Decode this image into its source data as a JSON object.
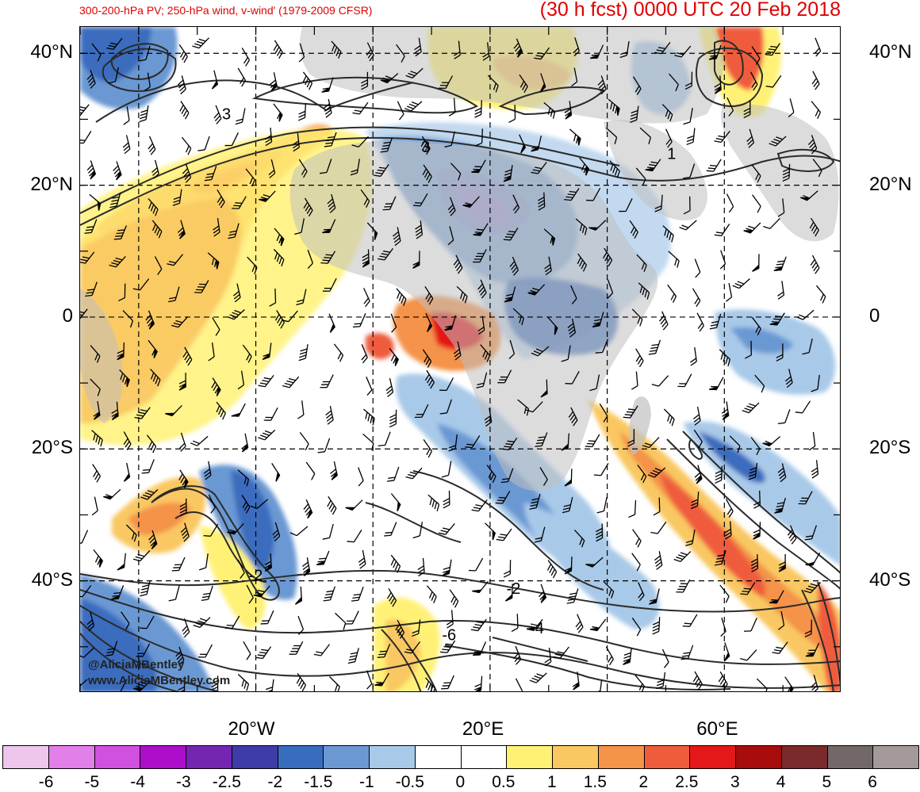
{
  "header": {
    "title_left": "300-200-hPa PV; 250-hPa wind, v-wind' (1979-2009 CFSR)",
    "title_right": "(30 h fcst) 0000 UTC 20 Feb 2018"
  },
  "map": {
    "lat_labels": [
      {
        "text": "40°N",
        "lat": 40
      },
      {
        "text": "20°N",
        "lat": 20
      },
      {
        "text": "0",
        "lat": 0
      },
      {
        "text": "20°S",
        "lat": -20
      },
      {
        "text": "40°S",
        "lat": -40
      }
    ],
    "lon_labels": [
      {
        "text": "20°W",
        "lon": -20
      },
      {
        "text": "20°E",
        "lon": 20
      },
      {
        "text": "60°E",
        "lon": 60
      }
    ],
    "domain": {
      "lon_min": -50,
      "lon_max": 80,
      "lat_min": -57,
      "lat_max": 44
    },
    "contour_labels": [
      {
        "text": "3",
        "lon": -25,
        "lat": 30
      },
      {
        "text": "3",
        "lon": 9,
        "lat": 25
      },
      {
        "text": "1",
        "lon": 51,
        "lat": 24
      },
      {
        "text": "-2",
        "lon": -20,
        "lat": -40
      },
      {
        "text": "-2",
        "lon": 24,
        "lat": -42
      },
      {
        "text": "-4",
        "lon": 28,
        "lat": -48
      },
      {
        "text": "-6",
        "lon": 13,
        "lat": -49
      }
    ],
    "credits": [
      "@AliciaMBentley",
      "www.AliciaMBentley.com"
    ]
  },
  "colorbar": {
    "colors": [
      "#eec5ec",
      "#e27fe8",
      "#d050e0",
      "#ad0ecc",
      "#7426b2",
      "#3e3ca8",
      "#3a6cbe",
      "#6b98d3",
      "#a8c9e8",
      "#ffffff",
      "#ffffff",
      "#fff176",
      "#f9c862",
      "#f4934a",
      "#ef5c3c",
      "#e41818",
      "#a80c0c",
      "#7a2a2a",
      "#736868",
      "#a49a9a"
    ],
    "labels": [
      "-6",
      "-5",
      "-4",
      "-3",
      "-2.5",
      "-2",
      "-1.5",
      "-1",
      "-0.5",
      "0",
      "0.5",
      "1",
      "1.5",
      "2",
      "2.5",
      "3",
      "4",
      "5",
      "6"
    ]
  }
}
